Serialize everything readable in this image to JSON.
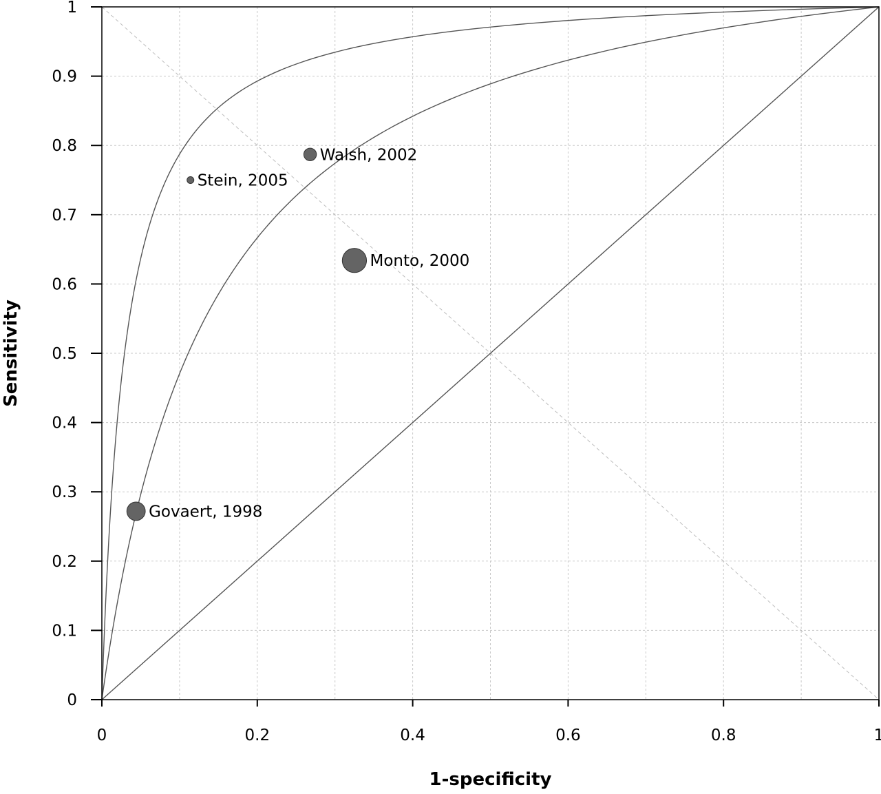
{
  "chart_data": {
    "type": "scatter",
    "title": "",
    "xlabel": "1-specificity",
    "ylabel": "Sensitivity",
    "xlim": [
      0,
      1
    ],
    "ylim": [
      0,
      1
    ],
    "x_ticks": [
      0,
      0.2,
      0.4,
      0.6,
      0.8,
      1
    ],
    "x_tick_labels": [
      "0",
      "0.2",
      "0.4",
      "0.6",
      "0.8",
      "1"
    ],
    "y_ticks": [
      0,
      0.1,
      0.2,
      0.3,
      0.4,
      0.5,
      0.6,
      0.7,
      0.8,
      0.9,
      1
    ],
    "y_tick_labels": [
      "0",
      "0.1",
      "0.2",
      "0.3",
      "0.4",
      "0.5",
      "0.6",
      "0.7",
      "0.8",
      "0.9",
      "1"
    ],
    "grid": true,
    "reference_lines": [
      "diagonal",
      "anti-diagonal"
    ],
    "points": [
      {
        "label": "Govaert, 1998",
        "x": 0.044,
        "y": 0.272,
        "weight": 3
      },
      {
        "label": "Stein, 2005",
        "x": 0.114,
        "y": 0.75,
        "weight": 1
      },
      {
        "label": "Walsh, 2002",
        "x": 0.268,
        "y": 0.787,
        "weight": 2
      },
      {
        "label": "Monto, 2000",
        "x": 0.325,
        "y": 0.634,
        "weight": 4
      }
    ],
    "curves": [
      {
        "type": "sroc",
        "shape": 0.03
      },
      {
        "type": "sroc",
        "shape": 0.125
      },
      {
        "type": "line",
        "x": [
          0,
          1
        ],
        "y": [
          0,
          1
        ]
      }
    ],
    "colors": {
      "marker": "#646464",
      "curve": "#555555",
      "grid": "#c8c8c8"
    }
  }
}
